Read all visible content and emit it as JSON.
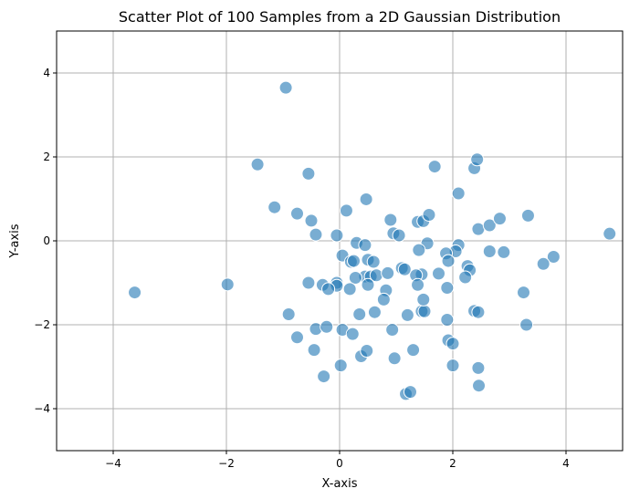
{
  "chart_data": {
    "type": "scatter",
    "title": "Scatter Plot of 100 Samples from a 2D Gaussian Distribution",
    "xlabel": "X-axis",
    "ylabel": "Y-axis",
    "xlim": [
      -5,
      5
    ],
    "ylim": [
      -5,
      5
    ],
    "xticks": [
      -4,
      -2,
      0,
      2,
      4
    ],
    "yticks": [
      -4,
      -2,
      0,
      2,
      4
    ],
    "xtick_labels": [
      "−4",
      "−2",
      "0",
      "2",
      "4"
    ],
    "ytick_labels": [
      "−4",
      "−2",
      "0",
      "2",
      "4"
    ],
    "grid": true,
    "marker_color": "#1f77b4",
    "marker_opacity": 0.6,
    "points": [
      [
        -0.95,
        3.65
      ],
      [
        -1.45,
        1.82
      ],
      [
        -0.55,
        1.6
      ],
      [
        -1.15,
        0.8
      ],
      [
        -0.75,
        0.65
      ],
      [
        -0.5,
        0.48
      ],
      [
        -0.42,
        0.15
      ],
      [
        -0.05,
        0.13
      ],
      [
        0.12,
        0.72
      ],
      [
        0.47,
        0.99
      ],
      [
        0.9,
        0.5
      ],
      [
        0.95,
        0.18
      ],
      [
        1.05,
        0.13
      ],
      [
        1.38,
        0.45
      ],
      [
        1.48,
        0.47
      ],
      [
        1.58,
        0.62
      ],
      [
        1.68,
        1.77
      ],
      [
        2.1,
        1.13
      ],
      [
        2.38,
        1.73
      ],
      [
        2.43,
        1.94
      ],
      [
        2.45,
        0.28
      ],
      [
        2.65,
        0.37
      ],
      [
        2.83,
        0.53
      ],
      [
        3.33,
        0.6
      ],
      [
        4.77,
        0.17
      ],
      [
        3.78,
        -0.38
      ],
      [
        3.6,
        -0.55
      ],
      [
        2.9,
        -0.27
      ],
      [
        2.65,
        -0.25
      ],
      [
        2.26,
        -0.6
      ],
      [
        2.3,
        -0.7
      ],
      [
        2.22,
        -0.87
      ],
      [
        2.1,
        -0.1
      ],
      [
        2.05,
        -0.25
      ],
      [
        1.88,
        -0.3
      ],
      [
        1.92,
        -0.48
      ],
      [
        1.55,
        -0.06
      ],
      [
        1.4,
        -0.22
      ],
      [
        1.45,
        -0.8
      ],
      [
        1.35,
        -0.82
      ],
      [
        1.38,
        -1.05
      ],
      [
        1.1,
        -0.65
      ],
      [
        1.15,
        -0.68
      ],
      [
        0.3,
        -0.05
      ],
      [
        0.45,
        -0.1
      ],
      [
        0.05,
        -0.35
      ],
      [
        0.2,
        -0.5
      ],
      [
        0.25,
        -0.48
      ],
      [
        0.5,
        -0.45
      ],
      [
        0.6,
        -0.5
      ],
      [
        0.45,
        -0.85
      ],
      [
        0.55,
        -0.85
      ],
      [
        0.65,
        -0.82
      ],
      [
        0.28,
        -0.88
      ],
      [
        0.5,
        -1.05
      ],
      [
        0.85,
        -0.77
      ],
      [
        0.82,
        -1.18
      ],
      [
        0.78,
        -1.4
      ],
      [
        0.18,
        -1.15
      ],
      [
        -0.05,
        -1.0
      ],
      [
        -0.05,
        -1.07
      ],
      [
        -0.3,
        -1.05
      ],
      [
        -0.2,
        -1.15
      ],
      [
        -0.55,
        -1.0
      ],
      [
        -3.62,
        -1.23
      ],
      [
        -1.98,
        -1.04
      ],
      [
        -0.9,
        -1.75
      ],
      [
        -0.42,
        -2.1
      ],
      [
        -0.23,
        -2.05
      ],
      [
        -0.75,
        -2.3
      ],
      [
        -0.45,
        -2.6
      ],
      [
        -0.28,
        -3.23
      ],
      [
        0.05,
        -2.12
      ],
      [
        0.23,
        -2.22
      ],
      [
        0.35,
        -1.75
      ],
      [
        0.62,
        -1.7
      ],
      [
        0.38,
        -2.75
      ],
      [
        0.48,
        -2.62
      ],
      [
        0.02,
        -2.97
      ],
      [
        0.93,
        -2.12
      ],
      [
        0.97,
        -2.8
      ],
      [
        1.2,
        -1.77
      ],
      [
        1.45,
        -1.68
      ],
      [
        1.5,
        -1.68
      ],
      [
        1.48,
        -1.4
      ],
      [
        1.9,
        -1.12
      ],
      [
        1.9,
        -1.88
      ],
      [
        1.92,
        -2.37
      ],
      [
        2.0,
        -2.45
      ],
      [
        2.0,
        -2.97
      ],
      [
        1.3,
        -2.6
      ],
      [
        1.17,
        -3.65
      ],
      [
        1.25,
        -3.6
      ],
      [
        2.45,
        -3.03
      ],
      [
        2.46,
        -3.45
      ],
      [
        2.38,
        -1.67
      ],
      [
        2.45,
        -1.7
      ],
      [
        3.25,
        -1.23
      ],
      [
        3.3,
        -2.0
      ],
      [
        1.75,
        -0.78
      ]
    ]
  }
}
